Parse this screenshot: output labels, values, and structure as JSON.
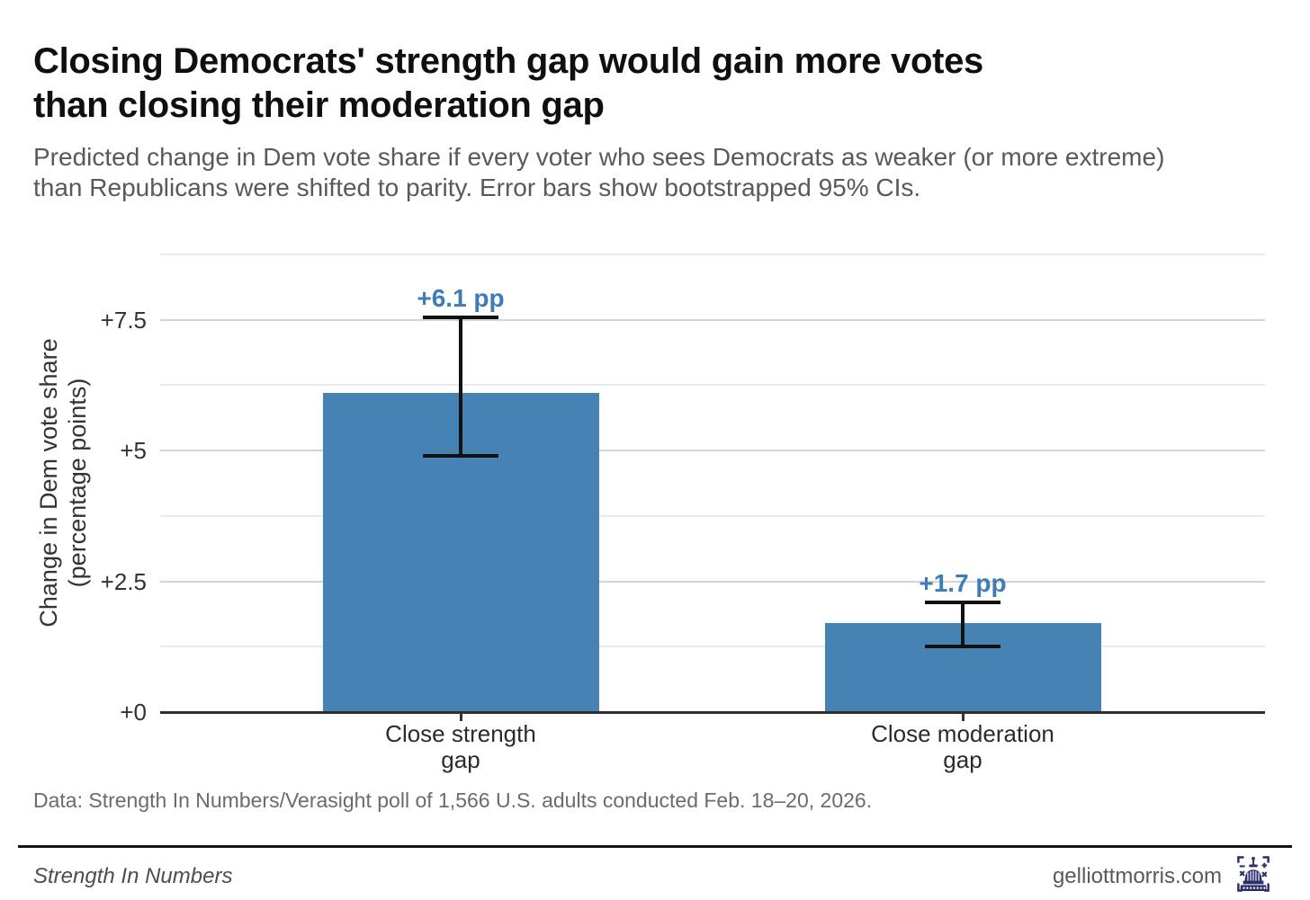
{
  "header": {
    "title_line1": "Closing Democrats' strength gap would gain more votes",
    "title_line2": "than closing their moderation gap",
    "subtitle_line1": "Predicted change in Dem vote share if every voter who sees Democrats as weaker (or more extreme)",
    "subtitle_line2": "than Republicans were shifted to parity. Error bars show bootstrapped 95% CIs."
  },
  "chart_data": {
    "type": "bar",
    "title": "Closing Democrats' strength gap would gain more votes than closing their moderation gap",
    "categories": [
      "Close strength\ngap",
      "Close moderation\ngap"
    ],
    "values": [
      6.1,
      1.7
    ],
    "value_labels": [
      "+6.1 pp",
      "+1.7 pp"
    ],
    "ci": [
      [
        4.9,
        7.55
      ],
      [
        1.25,
        2.1
      ]
    ],
    "xlabel": "",
    "ylabel": "Change in Dem vote share\n(percentage points)",
    "ylim": [
      0,
      8.75
    ],
    "yticks_major": {
      "values": [
        0,
        2.5,
        5,
        7.5
      ],
      "labels": [
        "+0",
        "+2.5",
        "+5",
        "+7.5"
      ]
    },
    "yticks_minor": [
      1.25,
      3.75,
      6.25,
      8.75
    ],
    "grid": "horizontal-only",
    "legend": "none",
    "bar_color": "#4682b4",
    "value_label_color": "#3d7cb7",
    "error_bar_color": "#111111"
  },
  "caption": "Data: Strength In Numbers/Verasight poll of 1,566 U.S. adults conducted Feb. 18–20, 2026.",
  "footer": {
    "left": "Strength In Numbers",
    "right": "gelliottmorris.com",
    "logo": "capitol-math-icon"
  }
}
